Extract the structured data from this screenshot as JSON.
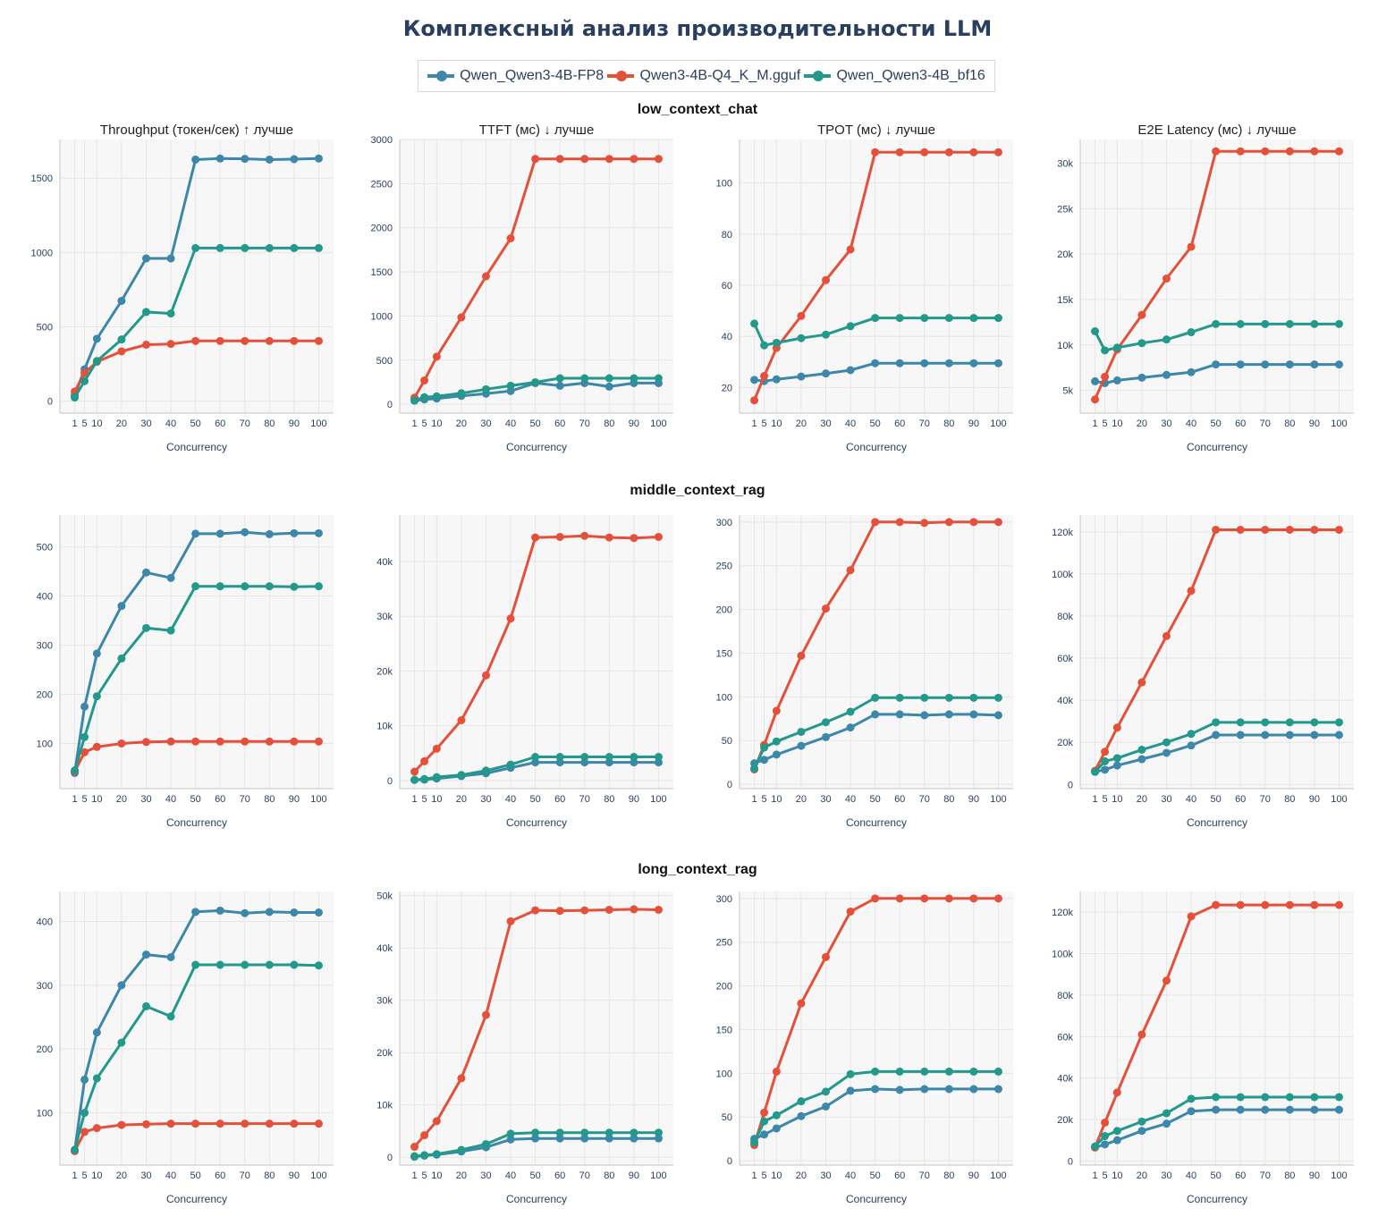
{
  "title": "Комплексный анализ производительности LLM",
  "series": [
    {
      "key": "fp8",
      "name": "Qwen_Qwen3-4B-FP8",
      "color": "#3c87aa"
    },
    {
      "key": "q4",
      "name": "Qwen3-4B-Q4_K_M.gguf",
      "color": "#e5503a"
    },
    {
      "key": "bf16",
      "name": "Qwen_Qwen3-4B_bf16",
      "color": "#22998a"
    }
  ],
  "x_label": "Concurrency",
  "x_values": [
    1,
    5,
    10,
    20,
    30,
    40,
    50,
    60,
    70,
    80,
    90,
    100
  ],
  "x_ticks": [
    "1",
    "5",
    "10",
    "20",
    "30",
    "40",
    "50",
    "60",
    "70",
    "80",
    "90",
    "100"
  ],
  "subplot_titles": [
    "Throughput (токен/сек) ↑ лучше",
    "TTFT (мс) ↓ лучше",
    "TPOT (мс) ↓ лучше",
    "E2E Latency (мс) ↓ лучше"
  ],
  "chart_data": [
    {
      "scenario": "low_context_chat",
      "charts": [
        {
          "type": "line",
          "metric": "throughput",
          "ylim": [
            -80,
            1760
          ],
          "y_ticks": [
            0,
            500,
            1000,
            1500
          ],
          "y_tick_labels": [
            "0",
            "500",
            "1000",
            "1500"
          ],
          "data": {
            "fp8": [
              40,
              215,
              420,
              675,
              960,
              960,
              1625,
              1632,
              1630,
              1625,
              1628,
              1632
            ],
            "q4": [
              65,
              190,
              265,
              335,
              380,
              385,
              405,
              405,
              405,
              405,
              405,
              405
            ],
            "bf16": [
              25,
              135,
              270,
              415,
              600,
              590,
              1030,
              1030,
              1030,
              1030,
              1030,
              1030
            ]
          }
        },
        {
          "type": "line",
          "metric": "ttft",
          "ylim": [
            -100,
            3000
          ],
          "y_ticks": [
            0,
            500,
            1000,
            1500,
            2000,
            2500,
            3000
          ],
          "y_tick_labels": [
            "0",
            "500",
            "1000",
            "1500",
            "2000",
            "2500",
            "3000"
          ],
          "data": {
            "fp8": [
              40,
              55,
              65,
              95,
              120,
              150,
              240,
              210,
              240,
              200,
              240,
              240
            ],
            "q4": [
              75,
              270,
              540,
              985,
              1450,
              1880,
              2780,
              2780,
              2780,
              2780,
              2780,
              2780
            ],
            "bf16": [
              45,
              80,
              90,
              125,
              170,
              210,
              250,
              295,
              295,
              295,
              295,
              295
            ]
          }
        },
        {
          "type": "line",
          "metric": "tpot",
          "ylim": [
            10,
            117
          ],
          "y_ticks": [
            20,
            40,
            60,
            80,
            100
          ],
          "y_tick_labels": [
            "20",
            "40",
            "60",
            "80",
            "100"
          ],
          "data": {
            "fp8": [
              23,
              22.5,
              23.2,
              24.3,
              25.5,
              26.8,
              29.5,
              29.5,
              29.5,
              29.5,
              29.5,
              29.5
            ],
            "q4": [
              15,
              24.5,
              35.5,
              48,
              62,
              74,
              112,
              112,
              112,
              112,
              112,
              112
            ],
            "bf16": [
              45,
              36.5,
              37.5,
              39.3,
              40.7,
              44,
              47.2,
              47.2,
              47.2,
              47.2,
              47.2,
              47.2
            ]
          }
        },
        {
          "type": "line",
          "metric": "e2e",
          "ylim": [
            2500,
            32600
          ],
          "y_ticks": [
            5000,
            10000,
            15000,
            20000,
            25000,
            30000
          ],
          "y_tick_labels": [
            "5k",
            "10k",
            "15k",
            "20k",
            "25k",
            "30k"
          ],
          "data": {
            "fp8": [
              6000,
              5800,
              6100,
              6400,
              6700,
              7000,
              7850,
              7850,
              7850,
              7850,
              7850,
              7850
            ],
            "q4": [
              4000,
              6500,
              9500,
              13300,
              17300,
              20800,
              31300,
              31300,
              31300,
              31300,
              31300,
              31300
            ],
            "bf16": [
              11500,
              9400,
              9700,
              10200,
              10600,
              11400,
              12300,
              12300,
              12300,
              12300,
              12300,
              12300
            ]
          }
        }
      ]
    },
    {
      "scenario": "middle_context_rag",
      "charts": [
        {
          "type": "line",
          "metric": "throughput",
          "ylim": [
            8,
            565
          ],
          "y_ticks": [
            100,
            200,
            300,
            400,
            500
          ],
          "y_tick_labels": [
            "100",
            "200",
            "300",
            "400",
            "500"
          ],
          "data": {
            "fp8": [
              40,
              175,
              283,
              380,
              448,
              437,
              527,
              527,
              530,
              526,
              528,
              528
            ],
            "q4": [
              43,
              82,
              93,
              100,
              103,
              104,
              104,
              104,
              104,
              104,
              104,
              104
            ],
            "bf16": [
              45,
              113,
              196,
              273,
              335,
              330,
              420,
              420,
              420,
              420,
              419,
              420
            ]
          }
        },
        {
          "type": "line",
          "metric": "ttft",
          "ylim": [
            -1500,
            48500
          ],
          "y_ticks": [
            0,
            10000,
            20000,
            30000,
            40000
          ],
          "y_tick_labels": [
            "0",
            "10k",
            "20k",
            "30k",
            "40k"
          ],
          "data": {
            "fp8": [
              100,
              150,
              350,
              800,
              1300,
              2300,
              3300,
              3300,
              3300,
              3300,
              3300,
              3300
            ],
            "q4": [
              1600,
              3500,
              5800,
              11000,
              19200,
              29600,
              44400,
              44500,
              44700,
              44400,
              44300,
              44500
            ],
            "bf16": [
              120,
              250,
              600,
              1000,
              1800,
              2900,
              4300,
              4300,
              4300,
              4300,
              4300,
              4300
            ]
          }
        },
        {
          "type": "line",
          "metric": "tpot",
          "ylim": [
            -5,
            308
          ],
          "y_ticks": [
            0,
            50,
            100,
            150,
            200,
            250,
            300
          ],
          "y_tick_labels": [
            "0",
            "50",
            "100",
            "150",
            "200",
            "250",
            "300"
          ],
          "data": {
            "fp8": [
              24,
              28,
              34,
              44,
              54,
              65,
              80,
              80,
              79,
              80,
              80,
              79
            ],
            "q4": [
              17,
              45,
              84,
              147,
              201,
              245,
              300,
              300,
              299,
              300,
              300,
              300
            ],
            "bf16": [
              18,
              42,
              49,
              60,
              71,
              83,
              99,
              99,
              99,
              99,
              99,
              99
            ]
          }
        },
        {
          "type": "line",
          "metric": "e2e",
          "ylim": [
            -2000,
            128000
          ],
          "y_ticks": [
            0,
            20000,
            40000,
            60000,
            80000,
            100000,
            120000
          ],
          "y_tick_labels": [
            "0",
            "20k",
            "40k",
            "60k",
            "80k",
            "100k",
            "120k"
          ],
          "data": {
            "fp8": [
              6000,
              7000,
              9000,
              12000,
              15000,
              18500,
              23500,
              23500,
              23500,
              23500,
              23500,
              23500
            ],
            "q4": [
              6500,
              15500,
              27000,
              48500,
              70500,
              92000,
              121000,
              121000,
              121000,
              121000,
              121000,
              121000
            ],
            "bf16": [
              6000,
              11000,
              12500,
              16500,
              20000,
              24000,
              29500,
              29500,
              29500,
              29500,
              29500,
              29500
            ]
          }
        }
      ]
    },
    {
      "scenario": "long_context_rag",
      "charts": [
        {
          "type": "line",
          "metric": "throughput",
          "ylim": [
            18,
            447
          ],
          "y_ticks": [
            100,
            200,
            300,
            400
          ],
          "y_tick_labels": [
            "100",
            "200",
            "300",
            "400"
          ],
          "data": {
            "fp8": [
              40,
              152,
              226,
              300,
              348,
              344,
              415,
              417,
              413,
              415,
              414,
              414
            ],
            "q4": [
              40,
              70,
              76,
              81,
              82,
              83,
              83,
              83,
              83,
              83,
              83,
              83
            ],
            "bf16": [
              42,
              100,
              154,
              210,
              267,
              251,
              332,
              332,
              332,
              332,
              332,
              331
            ]
          }
        },
        {
          "type": "line",
          "metric": "ttft",
          "ylim": [
            -1500,
            50800
          ],
          "y_ticks": [
            0,
            10000,
            20000,
            30000,
            40000,
            50000
          ],
          "y_tick_labels": [
            "0",
            "10k",
            "20k",
            "30k",
            "40k",
            "50k"
          ],
          "data": {
            "fp8": [
              100,
              300,
              500,
              1100,
              1900,
              3400,
              3600,
              3600,
              3600,
              3600,
              3600,
              3600
            ],
            "q4": [
              2000,
              4200,
              6900,
              15100,
              27200,
              45100,
              47200,
              47100,
              47200,
              47300,
              47400,
              47300
            ],
            "bf16": [
              200,
              400,
              600,
              1400,
              2500,
              4500,
              4700,
              4700,
              4700,
              4700,
              4700,
              4700
            ]
          }
        },
        {
          "type": "line",
          "metric": "tpot",
          "ylim": [
            -5,
            308
          ],
          "y_ticks": [
            0,
            50,
            100,
            150,
            200,
            250,
            300
          ],
          "y_tick_labels": [
            "0",
            "50",
            "100",
            "150",
            "200",
            "250",
            "300"
          ],
          "data": {
            "fp8": [
              25,
              30,
              37,
              51,
              62,
              80,
              82,
              81,
              82,
              82,
              82,
              82
            ],
            "q4": [
              18,
              55,
              102,
              180,
              233,
              285,
              300,
              300,
              300,
              300,
              300,
              300
            ],
            "bf16": [
              21,
              45,
              52,
              68,
              79,
              99,
              102,
              102,
              102,
              102,
              102,
              102
            ]
          }
        },
        {
          "type": "line",
          "metric": "e2e",
          "ylim": [
            -2000,
            130000
          ],
          "y_ticks": [
            0,
            20000,
            40000,
            60000,
            80000,
            100000,
            120000
          ],
          "y_tick_labels": [
            "0",
            "20k",
            "40k",
            "60k",
            "80k",
            "100k",
            "120k"
          ],
          "data": {
            "fp8": [
              6500,
              8000,
              10000,
              14500,
              18000,
              24000,
              24700,
              24700,
              24700,
              24700,
              24700,
              24700
            ],
            "q4": [
              6500,
              18500,
              33000,
              61000,
              87000,
              118000,
              123500,
              123500,
              123500,
              123500,
              123500,
              123500
            ],
            "bf16": [
              7000,
              12000,
              14500,
              19000,
              23000,
              30000,
              30800,
              30800,
              30800,
              30800,
              30800,
              30800
            ]
          }
        }
      ]
    }
  ]
}
